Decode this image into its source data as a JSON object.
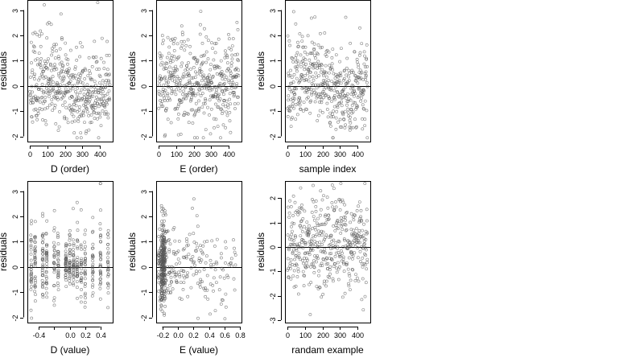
{
  "chart_data": [
    {
      "type": "scatter",
      "kind": "index",
      "xlabel": "D (order)",
      "ylabel": "residuals",
      "xlim": [
        -15,
        475
      ],
      "ylim": [
        -2.2,
        3.4
      ],
      "xticks": [
        0,
        100,
        200,
        300,
        400
      ],
      "yticks": [
        -2,
        -1,
        0,
        1,
        2,
        3
      ],
      "hline": 0,
      "seed": 11,
      "n": 460,
      "points_note": "individual points estimated; residuals spread about 0"
    },
    {
      "type": "scatter",
      "kind": "index",
      "xlabel": "E (order)",
      "ylabel": "residuals",
      "xlim": [
        -15,
        475
      ],
      "ylim": [
        -2.2,
        3.4
      ],
      "xticks": [
        0,
        100,
        200,
        300,
        400
      ],
      "yticks": [
        -2,
        -1,
        0,
        1,
        2,
        3
      ],
      "hline": 0,
      "seed": 23,
      "n": 460
    },
    {
      "type": "scatter",
      "kind": "index",
      "xlabel": "sample index",
      "ylabel": "residuals",
      "xlim": [
        -15,
        475
      ],
      "ylim": [
        -2.2,
        3.4
      ],
      "xticks": [
        0,
        100,
        200,
        300,
        400
      ],
      "yticks": [
        -2,
        -1,
        0,
        1,
        2,
        3
      ],
      "hline": 0,
      "seed": 37,
      "n": 460
    },
    {
      "type": "scatter",
      "kind": "value_d",
      "xlabel": "D (value)",
      "ylabel": "residuals",
      "xlim": [
        -0.55,
        0.56
      ],
      "ylim": [
        -2.2,
        3.4
      ],
      "xticks": [
        -0.4,
        -0.2,
        0.0,
        0.2,
        0.4
      ],
      "xtick_labels": [
        "-0.4",
        "",
        "0.0",
        "0.2",
        "0.4"
      ],
      "yticks": [
        -2,
        -1,
        0,
        1,
        2,
        3
      ],
      "hline": 0,
      "seed": 41,
      "n": 460
    },
    {
      "type": "scatter",
      "kind": "value_e",
      "xlabel": "E (value)",
      "ylabel": "residuals",
      "xlim": [
        -0.28,
        0.82
      ],
      "ylim": [
        -2.2,
        3.4
      ],
      "xticks": [
        -0.2,
        0.0,
        0.2,
        0.4,
        0.6,
        0.8
      ],
      "xtick_labels": [
        "-0.2",
        "0.0",
        "0.2",
        "0.4",
        "0.6",
        "0.8"
      ],
      "yticks": [
        -2,
        -1,
        0,
        1,
        2,
        3
      ],
      "hline": 0,
      "seed": 53,
      "n": 460
    },
    {
      "type": "scatter",
      "kind": "random",
      "xlabel": "randam example",
      "ylabel": "residuals",
      "xlim": [
        -15,
        475
      ],
      "ylim": [
        -3.1,
        2.7
      ],
      "xticks": [
        0,
        100,
        200,
        300,
        400
      ],
      "yticks": [
        -3,
        -2,
        -1,
        0,
        1,
        2
      ],
      "hline": 0,
      "seed": 67,
      "n": 460
    }
  ]
}
